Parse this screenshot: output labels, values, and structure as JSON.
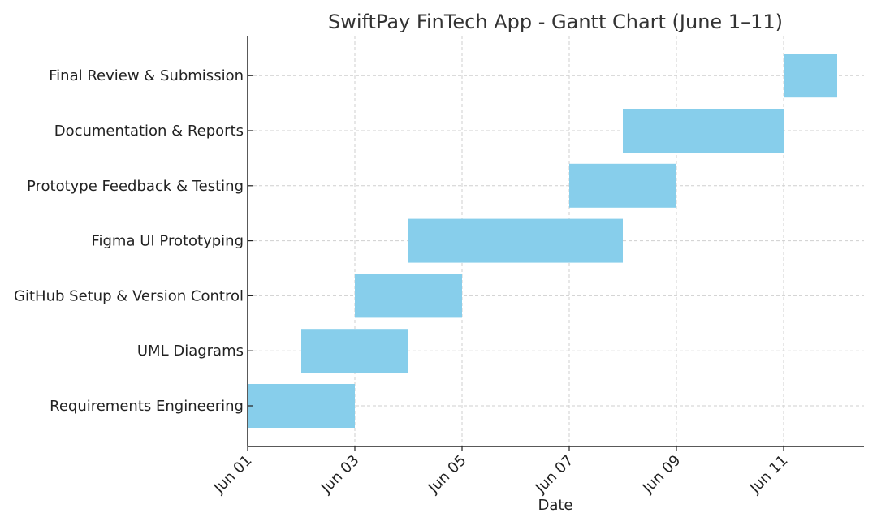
{
  "chart_data": {
    "type": "gantt",
    "title": "SwiftPay FinTech App - Gantt Chart (June 1–11)",
    "xlabel": "Date",
    "ylabel": "",
    "x_ticks": [
      "Jun 01",
      "Jun 03",
      "Jun 05",
      "Jun 07",
      "Jun 09",
      "Jun 11"
    ],
    "x_range": [
      "2024-06-01",
      "2024-06-12T12:00"
    ],
    "grid": true,
    "bar_color": "#87CEEB",
    "tasks": [
      {
        "name": "Requirements Engineering",
        "start": "2024-06-01",
        "end": "2024-06-03"
      },
      {
        "name": "UML Diagrams",
        "start": "2024-06-02",
        "end": "2024-06-04"
      },
      {
        "name": "GitHub Setup & Version Control",
        "start": "2024-06-03",
        "end": "2024-06-05"
      },
      {
        "name": "Figma UI Prototyping",
        "start": "2024-06-04",
        "end": "2024-06-08"
      },
      {
        "name": "Prototype Feedback & Testing",
        "start": "2024-06-07",
        "end": "2024-06-09"
      },
      {
        "name": "Documentation & Reports",
        "start": "2024-06-08",
        "end": "2024-06-11"
      },
      {
        "name": "Final Review & Submission",
        "start": "2024-06-11",
        "end": "2024-06-12"
      }
    ]
  }
}
